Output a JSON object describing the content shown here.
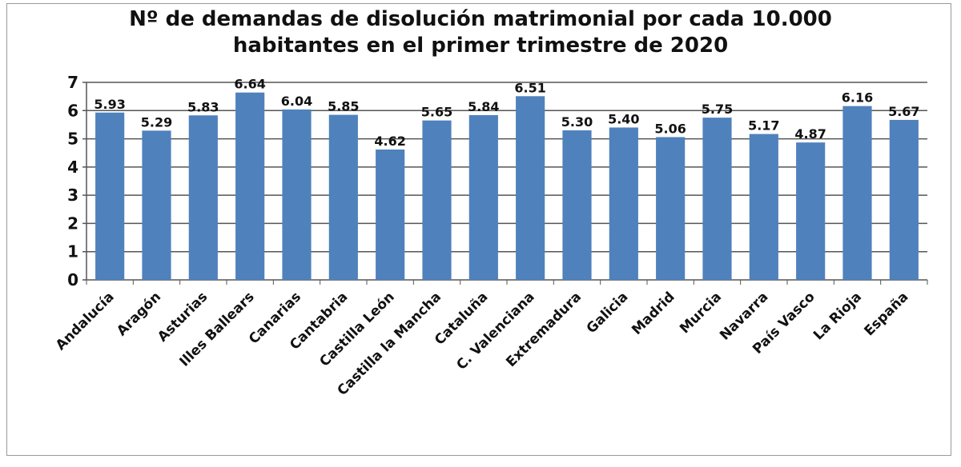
{
  "chart_data": {
    "type": "bar",
    "title": "Nº de demandas de disolución matrimonial por cada 10.000 habitantes en el primer trimestre de 2020",
    "categories": [
      "Andalucía",
      "Aragón",
      "Asturias",
      "Illes Ballears",
      "Canarias",
      "Cantabria",
      "Castilla León",
      "Castilla la Mancha",
      "Cataluña",
      "C. Valenciana",
      "Extremadura",
      "Galicia",
      "Madrid",
      "Murcia",
      "Navarra",
      "País Vasco",
      "La Rioja",
      "España"
    ],
    "values": [
      5.93,
      5.29,
      5.83,
      6.64,
      6.04,
      5.85,
      4.62,
      5.65,
      5.84,
      6.51,
      5.3,
      5.4,
      5.06,
      5.75,
      5.17,
      4.87,
      6.16,
      5.67
    ],
    "value_labels": [
      "5.93",
      "5.29",
      "5.83",
      "6.64",
      "6.04",
      "5.85",
      "4.62",
      "5.65",
      "5.84",
      "6.51",
      "5.30",
      "5.40",
      "5.06",
      "5.75",
      "5.17",
      "4.87",
      "6.16",
      "5.67"
    ],
    "color": "#4f81bd",
    "ylim": [
      0,
      7
    ],
    "yticks": [
      0,
      1,
      2,
      3,
      4,
      5,
      6,
      7
    ],
    "grid": true
  }
}
